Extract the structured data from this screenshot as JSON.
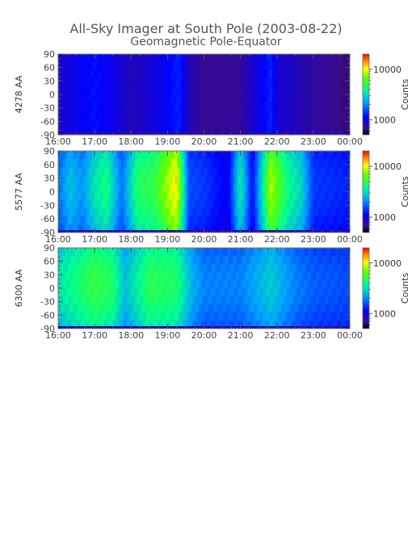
{
  "chart_data": {
    "type": "heatmap",
    "title": "All-Sky Imager at South Pole (2003-08-22)",
    "subtitle": "Geomagnetic Pole-Equator",
    "x_ticks": [
      "16:00",
      "17:00",
      "18:00",
      "19:00",
      "20:00",
      "21:00",
      "22:00",
      "23:00",
      "00:00"
    ],
    "x_range": [
      "16:00",
      "00:00"
    ],
    "y_ticks": [
      90,
      60,
      30,
      0,
      -30,
      -60,
      -90
    ],
    "y_range": [
      -90,
      90
    ],
    "colorbar": {
      "label": "Counts",
      "ticks": [
        10000,
        1000
      ],
      "scale": "log",
      "colormap": "rainbow"
    },
    "panels": [
      {
        "name": "4278 AA",
        "intensity_profile": [
          {
            "t": "16:00",
            "v": 0.16
          },
          {
            "t": "16:30",
            "v": 0.2
          },
          {
            "t": "17:00",
            "v": 0.24
          },
          {
            "t": "17:30",
            "v": 0.2
          },
          {
            "t": "18:00",
            "v": 0.14
          },
          {
            "t": "18:30",
            "v": 0.17
          },
          {
            "t": "19:00",
            "v": 0.22
          },
          {
            "t": "19:20",
            "v": 0.26
          },
          {
            "t": "19:35",
            "v": 0.14
          },
          {
            "t": "20:00",
            "v": 0.09
          },
          {
            "t": "21:00",
            "v": 0.1
          },
          {
            "t": "21:50",
            "v": 0.26
          },
          {
            "t": "22:00",
            "v": 0.18
          },
          {
            "t": "23:00",
            "v": 0.11
          },
          {
            "t": "00:00",
            "v": 0.07
          }
        ]
      },
      {
        "name": "5577 AA",
        "intensity_profile": [
          {
            "t": "16:00",
            "v": 0.34
          },
          {
            "t": "16:20",
            "v": 0.44
          },
          {
            "t": "16:40",
            "v": 0.38
          },
          {
            "t": "17:00",
            "v": 0.5
          },
          {
            "t": "17:20",
            "v": 0.56
          },
          {
            "t": "17:45",
            "v": 0.34
          },
          {
            "t": "18:10",
            "v": 0.58
          },
          {
            "t": "18:40",
            "v": 0.62
          },
          {
            "t": "19:15",
            "v": 0.82
          },
          {
            "t": "19:35",
            "v": 0.3
          },
          {
            "t": "20:00",
            "v": 0.28
          },
          {
            "t": "20:40",
            "v": 0.2
          },
          {
            "t": "21:00",
            "v": 0.52
          },
          {
            "t": "21:20",
            "v": 0.22
          },
          {
            "t": "21:50",
            "v": 0.74
          },
          {
            "t": "22:20",
            "v": 0.54
          },
          {
            "t": "22:40",
            "v": 0.48
          },
          {
            "t": "23:00",
            "v": 0.28
          },
          {
            "t": "00:00",
            "v": 0.25
          }
        ]
      },
      {
        "name": "6300 AA",
        "intensity_profile": [
          {
            "t": "16:00",
            "v": 0.5
          },
          {
            "t": "16:30",
            "v": 0.56
          },
          {
            "t": "17:00",
            "v": 0.62
          },
          {
            "t": "17:30",
            "v": 0.58
          },
          {
            "t": "17:50",
            "v": 0.44
          },
          {
            "t": "18:30",
            "v": 0.6
          },
          {
            "t": "19:15",
            "v": 0.58
          },
          {
            "t": "19:40",
            "v": 0.42
          },
          {
            "t": "20:00",
            "v": 0.36
          },
          {
            "t": "21:00",
            "v": 0.36
          },
          {
            "t": "21:50",
            "v": 0.46
          },
          {
            "t": "22:30",
            "v": 0.36
          },
          {
            "t": "23:00",
            "v": 0.32
          },
          {
            "t": "00:00",
            "v": 0.3
          }
        ]
      }
    ]
  }
}
